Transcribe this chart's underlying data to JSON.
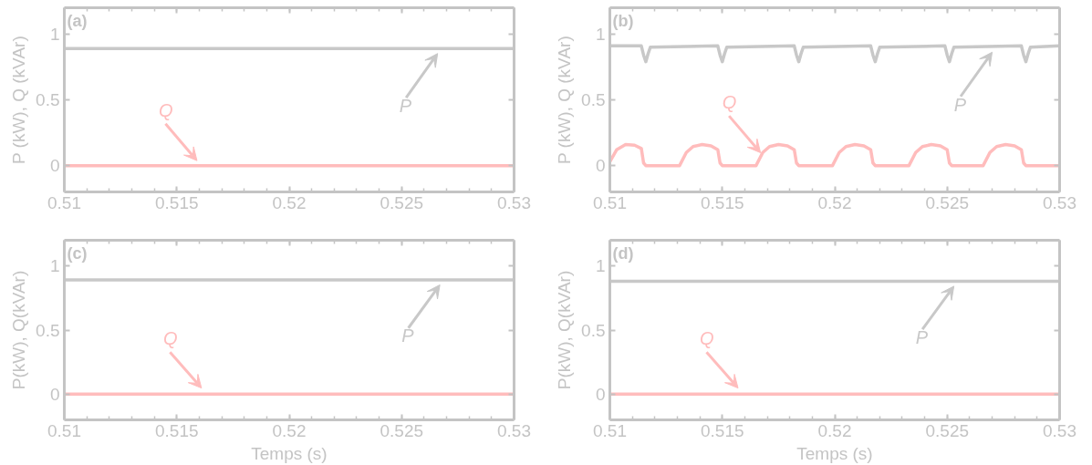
{
  "chart_data": [
    {
      "type": "line",
      "title": "(a)",
      "ylabel": "P (kW), Q (kVAr)",
      "xlim": [
        0.51,
        0.53
      ],
      "ylim": [
        -0.2,
        1.2
      ],
      "xticks": [
        0.51,
        0.515,
        0.52,
        0.525,
        0.53
      ],
      "yticks": [
        0,
        0.5,
        1
      ],
      "series": [
        {
          "color": "#c8c8c8",
          "x": [
            0.51,
            0.515,
            0.52,
            0.525,
            0.53
          ],
          "values": [
            0.89,
            0.89,
            0.89,
            0.89,
            0.89
          ]
        },
        {
          "color": "#ffbcbc",
          "x": [
            0.51,
            0.515,
            0.52,
            0.525,
            0.53
          ],
          "values": [
            0,
            0,
            0,
            0,
            0
          ]
        }
      ],
      "annotations": [
        {
          "text": "P",
          "x": 0.5266,
          "y": 0.88
        },
        {
          "text": "Q",
          "x": 0.5159,
          "y": 0.01
        }
      ]
    },
    {
      "type": "line",
      "title": "(b)",
      "ylabel": "P (kW), Q (kVAr)",
      "xlim": [
        0.51,
        0.53
      ],
      "ylim": [
        -0.2,
        1.2
      ],
      "xticks": [
        0.51,
        0.515,
        0.52,
        0.525,
        0.53
      ],
      "yticks": [
        0,
        0.5,
        1
      ],
      "series": [
        {
          "color": "#c8c8c8",
          "x": [
            0.51,
            0.5114,
            0.5115,
            0.5116,
            0.5117,
            0.5118,
            0.5148,
            0.5149,
            0.515,
            0.5151,
            0.5152,
            0.5182,
            0.5183,
            0.5184,
            0.5185,
            0.5186,
            0.5216,
            0.5217,
            0.5218,
            0.5219,
            0.522,
            0.5249,
            0.525,
            0.5251,
            0.5252,
            0.5253,
            0.5283,
            0.5284,
            0.5285,
            0.5286,
            0.5287,
            0.53
          ],
          "values": [
            0.91,
            0.91,
            0.84,
            0.79,
            0.85,
            0.9,
            0.91,
            0.84,
            0.79,
            0.85,
            0.9,
            0.91,
            0.84,
            0.79,
            0.85,
            0.9,
            0.91,
            0.84,
            0.79,
            0.85,
            0.9,
            0.91,
            0.84,
            0.79,
            0.85,
            0.9,
            0.91,
            0.84,
            0.79,
            0.85,
            0.9,
            0.91
          ]
        },
        {
          "color": "#ffbcbc",
          "x": [
            0.51,
            0.5103,
            0.5107,
            0.5111,
            0.5114,
            0.5115,
            0.5116,
            0.5131,
            0.5134,
            0.5137,
            0.5141,
            0.5145,
            0.5148,
            0.5149,
            0.515,
            0.5165,
            0.5168,
            0.5171,
            0.5175,
            0.5179,
            0.5182,
            0.5183,
            0.5184,
            0.5199,
            0.5202,
            0.5205,
            0.5209,
            0.5213,
            0.5216,
            0.5217,
            0.5218,
            0.5233,
            0.5236,
            0.5239,
            0.5243,
            0.5247,
            0.525,
            0.5251,
            0.5252,
            0.5266,
            0.5269,
            0.5272,
            0.5276,
            0.528,
            0.5283,
            0.5284,
            0.5285,
            0.53
          ],
          "values": [
            0.03,
            0.12,
            0.16,
            0.155,
            0.13,
            0.02,
            0,
            0,
            0.1,
            0.145,
            0.16,
            0.15,
            0.12,
            0.02,
            0,
            0,
            0.1,
            0.145,
            0.16,
            0.15,
            0.12,
            0.02,
            0,
            0,
            0.1,
            0.145,
            0.16,
            0.15,
            0.12,
            0.02,
            0,
            0,
            0.1,
            0.145,
            0.16,
            0.15,
            0.12,
            0.02,
            0,
            0,
            0.1,
            0.145,
            0.16,
            0.15,
            0.12,
            0.02,
            0,
            0
          ]
        }
      ],
      "annotations": [
        {
          "text": "P",
          "x": 0.527,
          "y": 0.89
        },
        {
          "text": "Q",
          "x": 0.5167,
          "y": 0.07
        }
      ]
    },
    {
      "type": "line",
      "title": "(c)",
      "xlabel": "Temps (s)",
      "ylabel": "P(kW), Q(kVAr)",
      "xlim": [
        0.51,
        0.53
      ],
      "ylim": [
        -0.2,
        1.2
      ],
      "xticks": [
        0.51,
        0.515,
        0.52,
        0.525,
        0.53
      ],
      "yticks": [
        0,
        0.5,
        1
      ],
      "series": [
        {
          "color": "#c8c8c8",
          "x": [
            0.51,
            0.515,
            0.52,
            0.525,
            0.53
          ],
          "values": [
            0.89,
            0.89,
            0.89,
            0.89,
            0.89
          ]
        },
        {
          "color": "#ffbcbc",
          "x": [
            0.51,
            0.515,
            0.52,
            0.525,
            0.53
          ],
          "values": [
            0,
            0,
            0,
            0,
            0
          ]
        }
      ],
      "annotations": [
        {
          "text": "P",
          "x": 0.5267,
          "y": 0.88
        },
        {
          "text": "Q",
          "x": 0.5161,
          "y": 0.02
        }
      ]
    },
    {
      "type": "line",
      "title": "(d)",
      "xlabel": "Temps (s)",
      "ylabel": "P(kW), Q(kVAr)",
      "xlim": [
        0.51,
        0.53
      ],
      "ylim": [
        -0.2,
        1.2
      ],
      "xticks": [
        0.51,
        0.515,
        0.52,
        0.525,
        0.53
      ],
      "yticks": [
        0,
        0.5,
        1
      ],
      "series": [
        {
          "color": "#c8c8c8",
          "x": [
            0.51,
            0.515,
            0.52,
            0.525,
            0.53
          ],
          "values": [
            0.88,
            0.88,
            0.88,
            0.88,
            0.88
          ]
        },
        {
          "color": "#ffbcbc",
          "x": [
            0.51,
            0.515,
            0.52,
            0.525,
            0.53
          ],
          "values": [
            0,
            0,
            0,
            0,
            0
          ]
        }
      ],
      "annotations": [
        {
          "text": "P",
          "x": 0.5253,
          "y": 0.87
        },
        {
          "text": "Q",
          "x": 0.5157,
          "y": 0.02
        }
      ]
    }
  ]
}
